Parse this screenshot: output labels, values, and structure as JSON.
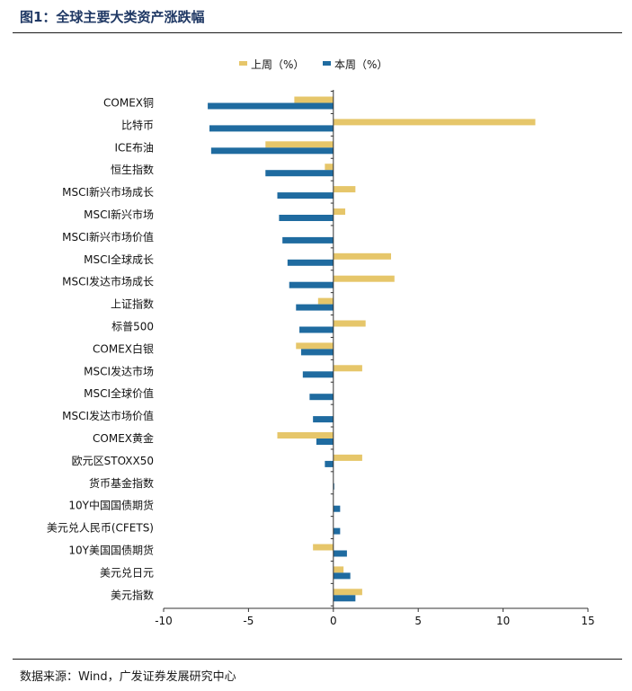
{
  "header": {
    "title": "图1：全球主要大类资产涨跌幅"
  },
  "footer": {
    "source": "数据来源：Wind，广发证券发展研究中心"
  },
  "colors": {
    "last_week": "#E6C66A",
    "this_week": "#1F6BA0",
    "axis": "#333333",
    "title": "#1F3864"
  },
  "chart_data": {
    "type": "bar",
    "orientation": "horizontal",
    "title": "全球主要大类资产涨跌幅",
    "xlim": [
      -10,
      15
    ],
    "xticks": [
      -10,
      -5,
      0,
      5,
      10,
      15
    ],
    "legend_position": "top-center",
    "categories": [
      "COMEX铜",
      "比特币",
      "ICE布油",
      "恒生指数",
      "MSCI新兴市场成长",
      "MSCI新兴市场",
      "MSCI新兴市场价值",
      "MSCI全球成长",
      "MSCI发达市场成长",
      "上证指数",
      "标普500",
      "COMEX白银",
      "MSCI发达市场",
      "MSCI全球价值",
      "MSCI发达市场价值",
      "COMEX黄金",
      "欧元区STOXX50",
      "货币基金指数",
      "10Y中国国债期货",
      "美元兑人民币(CFETS)",
      "10Y美国国债期货",
      "美元兑日元",
      "美元指数"
    ],
    "series": [
      {
        "name": "上周（%）",
        "color": "#E6C66A",
        "values": [
          -2.3,
          11.9,
          -4.0,
          -0.5,
          1.3,
          0.7,
          0.0,
          3.4,
          3.6,
          -0.9,
          1.9,
          -2.2,
          1.7,
          0.0,
          0.0,
          -3.3,
          1.7,
          0.0,
          0.0,
          0.0,
          -1.2,
          0.6,
          1.7
        ]
      },
      {
        "name": "本周（%）",
        "color": "#1F6BA0",
        "values": [
          -7.4,
          -7.3,
          -7.2,
          -4.0,
          -3.3,
          -3.2,
          -3.0,
          -2.7,
          -2.6,
          -2.2,
          -2.0,
          -1.9,
          -1.8,
          -1.4,
          -1.2,
          -1.0,
          -0.5,
          0.05,
          0.4,
          0.4,
          0.8,
          1.0,
          1.3
        ]
      }
    ]
  }
}
